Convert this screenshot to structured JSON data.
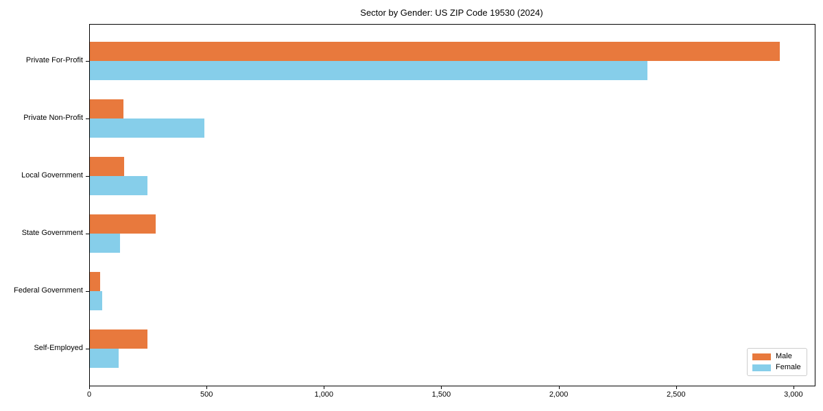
{
  "chart_data": {
    "type": "bar",
    "orientation": "horizontal",
    "title": "Sector by Gender: US ZIP Code 19530 (2024)",
    "categories": [
      "Private For-Profit",
      "Private Non-Profit",
      "Local Government",
      "State Government",
      "Federal Government",
      "Self-Employed"
    ],
    "series": [
      {
        "name": "Male",
        "color": "#e8793d",
        "values": [
          2938,
          144,
          146,
          280,
          43,
          246
        ]
      },
      {
        "name": "Female",
        "color": "#86ceea",
        "values": [
          2375,
          487,
          245,
          129,
          52,
          124
        ]
      }
    ],
    "xlabel": "",
    "ylabel": "",
    "xlim": [
      0,
      3088
    ],
    "xticks": [
      0,
      500,
      1000,
      1500,
      2000,
      2500,
      3000
    ],
    "xtick_labels": [
      "0",
      "500",
      "1,000",
      "1,500",
      "2,000",
      "2,500",
      "3,000"
    ],
    "grid": false,
    "legend_position": "lower right"
  }
}
